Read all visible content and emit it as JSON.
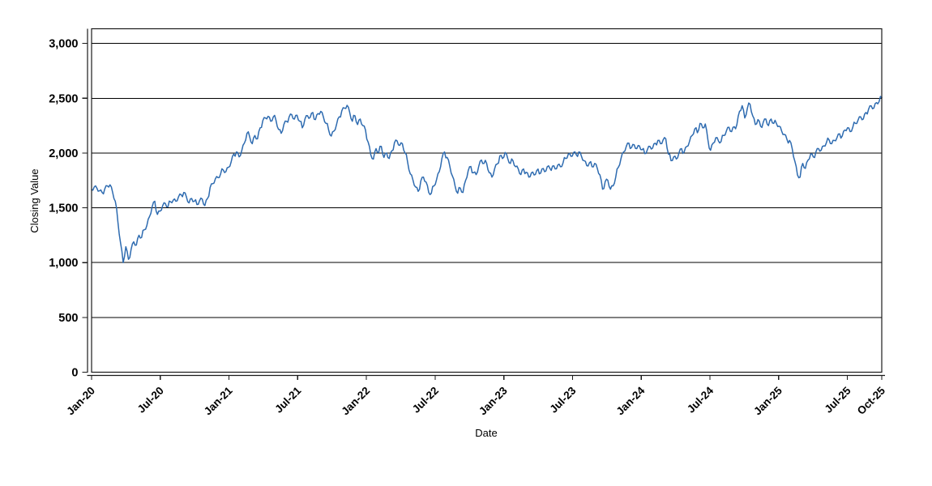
{
  "chart_data": {
    "type": "line",
    "title": "",
    "xlabel": "Date",
    "ylabel": "Closing Value",
    "legend": "none",
    "grid": "horizontal-only",
    "background_color": "#ffffff",
    "axis_color": "#1a1a1a",
    "gridline_color": "#000000",
    "line_color": "#2e6bb0",
    "ylim": [
      0,
      3134
    ],
    "y_ticks": [
      0,
      500,
      1000,
      1500,
      2000,
      2500,
      3000
    ],
    "y_tick_labels": [
      "0",
      "500",
      "1,000",
      "1,500",
      "2,000",
      "2,500",
      "3,000"
    ],
    "x_tick_labels": [
      "Jan-20",
      "Jul-20",
      "Jan-21",
      "Jul-21",
      "Jan-22",
      "Jul-22",
      "Jan-23",
      "Jul-23",
      "Jan-24",
      "Jul-24",
      "Jan-25",
      "Jul-25",
      "Oct-25"
    ],
    "x_tick_months": [
      0,
      6,
      12,
      18,
      24,
      30,
      36,
      42,
      48,
      54,
      60,
      66,
      69
    ],
    "x_range_months": [
      0,
      69
    ],
    "sampling": "weekly closing values (~0.23 month step), Jan-2020 through Oct-2025",
    "render": {
      "stroke_width": 1.5,
      "noise_value": 16
    },
    "series": [
      {
        "name": "Closing Value",
        "x_start_month": 0,
        "x_step_month": 0.23,
        "values": [
          1665,
          1690,
          1680,
          1655,
          1640,
          1672,
          1700,
          1710,
          1640,
          1560,
          1370,
          1180,
          1000,
          1145,
          1030,
          1120,
          1190,
          1160,
          1250,
          1230,
          1300,
          1340,
          1420,
          1510,
          1560,
          1440,
          1470,
          1520,
          1540,
          1510,
          1555,
          1570,
          1560,
          1600,
          1620,
          1640,
          1600,
          1545,
          1585,
          1560,
          1530,
          1565,
          1580,
          1520,
          1585,
          1685,
          1720,
          1765,
          1775,
          1810,
          1845,
          1830,
          1870,
          1920,
          1990,
          2010,
          1965,
          2020,
          2090,
          2180,
          2150,
          2085,
          2160,
          2130,
          2230,
          2295,
          2320,
          2335,
          2290,
          2330,
          2300,
          2215,
          2180,
          2260,
          2290,
          2330,
          2350,
          2310,
          2345,
          2290,
          2230,
          2310,
          2340,
          2325,
          2370,
          2305,
          2360,
          2380,
          2330,
          2270,
          2210,
          2155,
          2200,
          2260,
          2330,
          2385,
          2410,
          2435,
          2370,
          2290,
          2340,
          2260,
          2310,
          2250,
          2210,
          2100,
          1985,
          1945,
          2040,
          2005,
          2060,
          1960,
          2000,
          1950,
          2020,
          2095,
          2110,
          2070,
          2085,
          2000,
          1915,
          1810,
          1755,
          1690,
          1650,
          1745,
          1780,
          1735,
          1640,
          1633,
          1700,
          1760,
          1830,
          1950,
          2010,
          1960,
          1880,
          1790,
          1700,
          1633,
          1680,
          1640,
          1750,
          1840,
          1877,
          1820,
          1803,
          1880,
          1936,
          1905,
          1905,
          1820,
          1780,
          1855,
          1900,
          1975,
          1950,
          2005,
          1950,
          1905,
          1930,
          1875,
          1855,
          1803,
          1855,
          1825,
          1780,
          1820,
          1800,
          1840,
          1810,
          1855,
          1830,
          1875,
          1860,
          1880,
          1855,
          1890,
          1875,
          1910,
          1950,
          1990,
          1970,
          2005,
          1985,
          2010,
          1970,
          1930,
          1885,
          1910,
          1875,
          1905,
          1860,
          1800,
          1670,
          1740,
          1751,
          1670,
          1700,
          1780,
          1870,
          1950,
          2010,
          2060,
          2090,
          2050,
          2075,
          2040,
          2065,
          2030,
          1995,
          2030,
          2060,
          2045,
          2090,
          2115,
          2085,
          2120,
          2130,
          1990,
          1930,
          1965,
          1945,
          2000,
          2040,
          2010,
          2060,
          2105,
          2160,
          2220,
          2185,
          2270,
          2230,
          2265,
          2120,
          2025,
          2090,
          2140,
          2110,
          2105,
          2160,
          2200,
          2235,
          2195,
          2240,
          2260,
          2380,
          2432,
          2320,
          2410,
          2445,
          2340,
          2260,
          2305,
          2245,
          2280,
          2310,
          2250,
          2310,
          2270,
          2270,
          2245,
          2200,
          2170,
          2125,
          2115,
          2040,
          1926,
          1800,
          1780,
          1905,
          1860,
          1935,
          1990,
          1965,
          2010,
          2040,
          2025,
          2065,
          2095,
          2120,
          2085,
          2115,
          2140,
          2175,
          2155,
          2210,
          2230,
          2195,
          2235,
          2270,
          2300,
          2330,
          2310,
          2370,
          2400,
          2430,
          2410,
          2460,
          2470,
          2505
        ]
      }
    ]
  }
}
